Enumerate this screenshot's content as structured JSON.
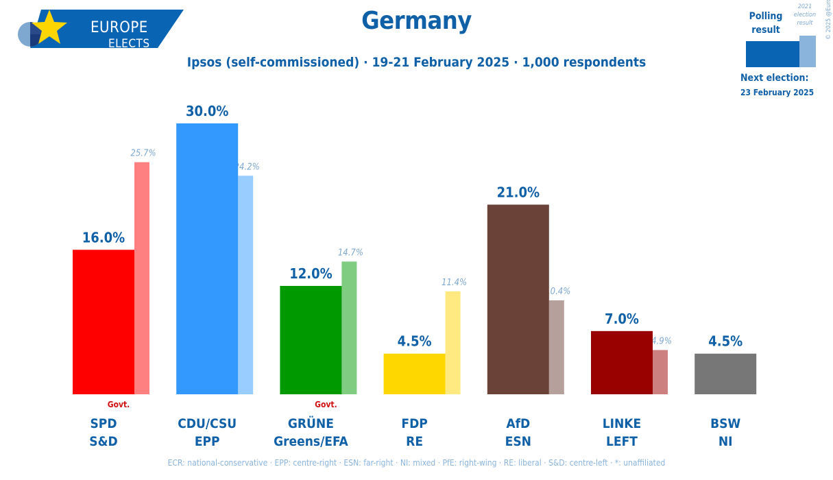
{
  "logo": {
    "line1": "EUROPE",
    "line2": "ELECTS"
  },
  "header": {
    "title": "Germany",
    "subtitle": "Ipsos (self-commissioned) · 19-21 February 2025 · 1,000 respondents"
  },
  "legend": {
    "polling_label": "Polling result",
    "previous_label": "2021 election result",
    "copyright": "© 2025 @EuropeElects",
    "next_election_label": "Next election:",
    "next_election_date": "23 February 2025"
  },
  "footer": "ECR: national-conservative · EPP: centre-right · ESN: far-right · NI: mixed · PfE: right-wing · RE: liberal · S&D: centre-left · *: unaffiliated",
  "chart_data": {
    "type": "bar",
    "categories": [
      "SPD",
      "CDU/CSU",
      "GRÜNE",
      "FDP",
      "AfD",
      "LINKE",
      "BSW"
    ],
    "groups": [
      "S&D",
      "EPP",
      "Greens/EFA",
      "RE",
      "ESN",
      "LEFT",
      "NI"
    ],
    "series": [
      {
        "name": "Polling result",
        "values": [
          16.0,
          30.0,
          12.0,
          4.5,
          21.0,
          7.0,
          4.5
        ]
      },
      {
        "name": "2021 election result",
        "values": [
          25.7,
          24.2,
          14.7,
          11.4,
          10.4,
          4.9,
          null
        ]
      }
    ],
    "value_labels": [
      "16.0%",
      "30.0%",
      "12.0%",
      "4.5%",
      "21.0%",
      "7.0%",
      "4.5%"
    ],
    "previous_labels": [
      "25.7%",
      "24.2%",
      "14.7%",
      "11.4%",
      "10.4%",
      "4.9%",
      ""
    ],
    "government": [
      "Govt.",
      "",
      "Govt.",
      "",
      "",
      "",
      ""
    ],
    "colors": [
      "#ff0000",
      "#3399ff",
      "#009900",
      "#ffd700",
      "#6b4238",
      "#990000",
      "#777777"
    ],
    "previous_colors": [
      "#ff8080",
      "#99ccff",
      "#80cc80",
      "#ffe980",
      "#b5a09b",
      "#cc8080",
      ""
    ],
    "ylim": [
      0,
      30
    ]
  }
}
